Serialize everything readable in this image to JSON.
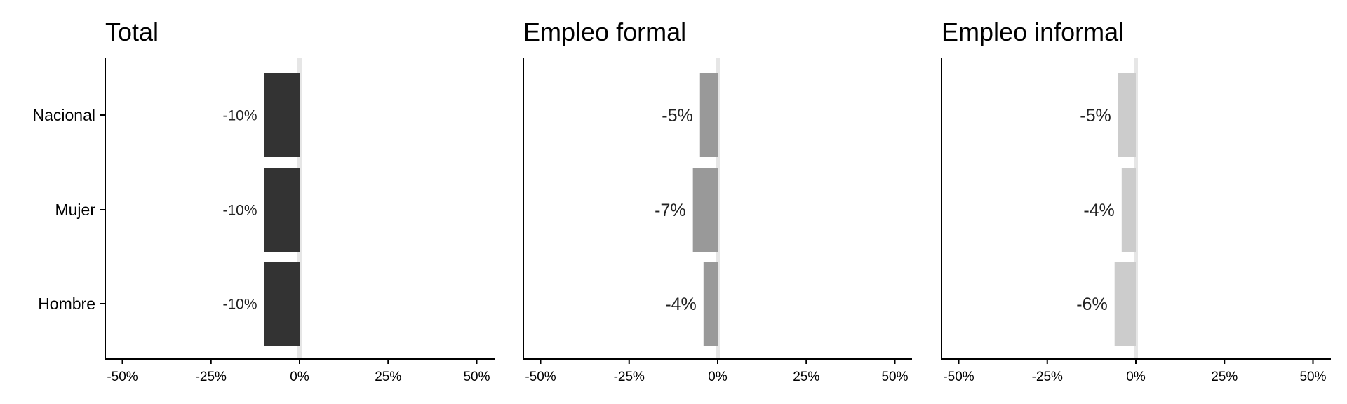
{
  "colors": {
    "background": "#ffffff",
    "axis": "#000000",
    "zero_line": "#e6e6e6",
    "label_text": "#222222"
  },
  "chart_data": [
    {
      "type": "bar",
      "orientation": "horizontal",
      "title": "Total",
      "categories": [
        "Nacional",
        "Mujer",
        "Hombre"
      ],
      "values": [
        -10,
        -10,
        -10
      ],
      "data_labels": [
        "-10%",
        "-10%",
        "-10%"
      ],
      "bar_color": "#333333",
      "xlim": [
        -55,
        55
      ],
      "xticks": [
        -50,
        -25,
        0,
        25,
        50
      ],
      "xtick_labels": [
        "-50%",
        "-25%",
        "0%",
        "25%",
        "50%"
      ],
      "xlabel": "",
      "ylabel": "",
      "grid": false,
      "legend": "none"
    },
    {
      "type": "bar",
      "orientation": "horizontal",
      "title": "Empleo formal",
      "categories": [
        "Nacional",
        "Mujer",
        "Hombre"
      ],
      "values": [
        -5,
        -7,
        -4
      ],
      "data_labels": [
        "-5%",
        "-7%",
        "-4%"
      ],
      "bar_color": "#999999",
      "xlim": [
        -55,
        55
      ],
      "xticks": [
        -50,
        -25,
        0,
        25,
        50
      ],
      "xtick_labels": [
        "-50%",
        "-25%",
        "0%",
        "25%",
        "50%"
      ],
      "xlabel": "",
      "ylabel": "",
      "grid": false,
      "legend": "none"
    },
    {
      "type": "bar",
      "orientation": "horizontal",
      "title": "Empleo informal",
      "categories": [
        "Nacional",
        "Mujer",
        "Hombre"
      ],
      "values": [
        -5,
        -4,
        -6
      ],
      "data_labels": [
        "-5%",
        "-4%",
        "-6%"
      ],
      "bar_color": "#cccccc",
      "xlim": [
        -55,
        55
      ],
      "xticks": [
        -50,
        -25,
        0,
        25,
        50
      ],
      "xtick_labels": [
        "-50%",
        "-25%",
        "0%",
        "25%",
        "50%"
      ],
      "xlabel": "",
      "ylabel": "",
      "grid": false,
      "legend": "none"
    }
  ]
}
